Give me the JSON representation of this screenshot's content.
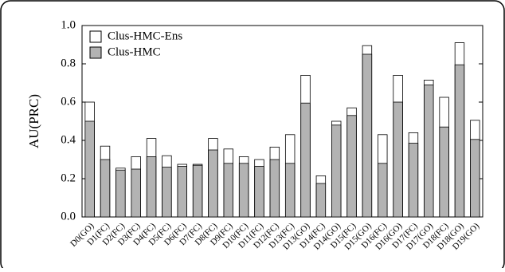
{
  "chart_data": {
    "type": "bar",
    "y_label": "AU(PRC)",
    "categories": [
      "D0(GO)",
      "D1(FC)",
      "D2(FC)",
      "D3(FC)",
      "D4(FC)",
      "D5(FC)",
      "D6(FC)",
      "D7(FC)",
      "D8(FC)",
      "D9(FC)",
      "D10(FC)",
      "D11(FC)",
      "D12(FC)",
      "D13(FC)",
      "D13(GO)",
      "D14(FC)",
      "D14(GO)",
      "D15(FC)",
      "D15(GO)",
      "D16(FC)",
      "D16(GO)",
      "D17(FC)",
      "D17(GO)",
      "D18(FC)",
      "D18(GO)",
      "D19(GO)"
    ],
    "series": [
      {
        "name": "Clus-HMC-Ens",
        "color": "#ffffff",
        "values": [
          0.6,
          0.37,
          0.255,
          0.315,
          0.41,
          0.32,
          0.275,
          0.275,
          0.41,
          0.355,
          0.315,
          0.3,
          0.365,
          0.43,
          0.74,
          0.215,
          0.5,
          0.57,
          0.895,
          0.43,
          0.74,
          0.44,
          0.715,
          0.625,
          0.91,
          0.505
        ]
      },
      {
        "name": "Clus-HMC",
        "color": "#b3b3b3",
        "values": [
          0.5,
          0.3,
          0.245,
          0.25,
          0.315,
          0.26,
          0.265,
          0.27,
          0.35,
          0.28,
          0.28,
          0.265,
          0.3,
          0.28,
          0.595,
          0.175,
          0.48,
          0.53,
          0.85,
          0.28,
          0.6,
          0.385,
          0.69,
          0.47,
          0.795,
          0.405
        ]
      }
    ],
    "ylim": [
      0,
      1.0
    ],
    "yticks": [
      {
        "value": 0,
        "label": "0.0"
      },
      0.2,
      0.4,
      0.6,
      0.8,
      {
        "value": 1,
        "label": "1.0"
      }
    ],
    "legend": "upper left",
    "overlap": true
  }
}
